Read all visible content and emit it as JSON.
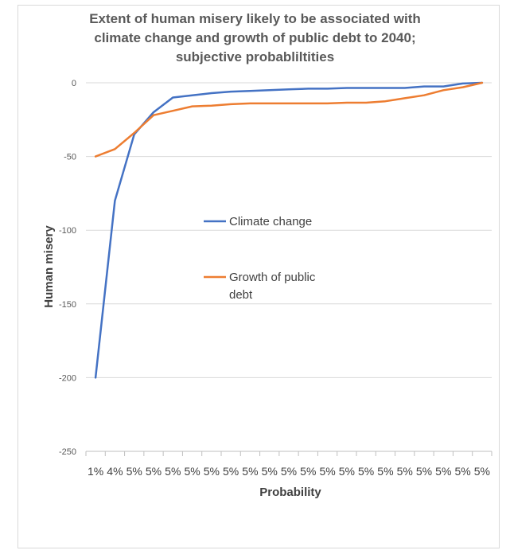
{
  "chart_data": {
    "type": "line",
    "title_lines": [
      "Extent of human misery likely to be associated with",
      "climate change and growth of public debt to 2040;",
      "subjective probabliltities"
    ],
    "xlabel": "Probability",
    "ylabel": "Human misery",
    "ylim": [
      -250,
      0
    ],
    "yticks": [
      0,
      -50,
      -100,
      -150,
      -200,
      -250
    ],
    "grid": true,
    "legend_position": "center",
    "categories": [
      "1%",
      "4%",
      "5%",
      "5%",
      "5%",
      "5%",
      "5%",
      "5%",
      "5%",
      "5%",
      "5%",
      "5%",
      "5%",
      "5%",
      "5%",
      "5%",
      "5%",
      "5%",
      "5%",
      "5%",
      "5%"
    ],
    "series": [
      {
        "name": "Climate change",
        "color": "#4472c4",
        "values": [
          -200,
          -80,
          -35,
          -20,
          -10,
          -8.5,
          -7,
          -6,
          -5.5,
          -5,
          -4.5,
          -4,
          -4,
          -3.5,
          -3.5,
          -3.5,
          -3.5,
          -2.5,
          -2.5,
          -0.5,
          0
        ]
      },
      {
        "name": "Growth of public debt",
        "color": "#ed7d31",
        "values": [
          -50,
          -45,
          -34,
          -22,
          -19,
          -16,
          -15.5,
          -14.5,
          -14,
          -14,
          -14,
          -14,
          -14,
          -13.5,
          -13.5,
          -12.5,
          -10.5,
          -8.5,
          -5,
          -3,
          0
        ]
      }
    ]
  }
}
